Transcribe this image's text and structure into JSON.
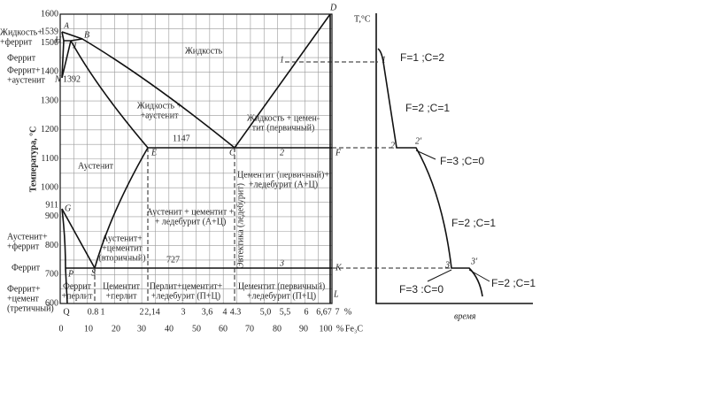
{
  "left": {
    "axis_title": "Температура, °С",
    "y_ticks": [
      "1600",
      "1500",
      "1400",
      "1300",
      "1200",
      "1100",
      "1000",
      "900",
      "800",
      "700",
      "600"
    ],
    "special_temps": [
      "1539",
      "1392",
      "1147",
      "911",
      "727"
    ],
    "x_ticks_carbon": [
      "Q",
      "0.8",
      "1",
      "2",
      "2,14",
      "3",
      "3,6",
      "4",
      "4.3",
      "5,0",
      "5,5",
      "6",
      "6,67",
      "7",
      "%"
    ],
    "x_ticks_fe3c": [
      "0",
      "10",
      "20",
      "30",
      "40",
      "50",
      "60",
      "70",
      "80",
      "90",
      "100",
      "%",
      "Fe₃C"
    ],
    "side_labels": [
      [
        "Жидкость+",
        "+феррит"
      ],
      [
        "Феррит"
      ],
      [
        "Феррит+",
        "+аустенит"
      ],
      [
        "Аустенит+",
        "+феррит"
      ],
      [
        "Феррит"
      ],
      [
        "Феррит+",
        "+цемент",
        "(третичный)"
      ]
    ],
    "regions": [
      [
        "Жидкость"
      ],
      [
        "Жидкость +",
        "+аустенит"
      ],
      [
        "Жидкость + цемен-",
        "тит (первичный)"
      ],
      [
        "Аустенит"
      ],
      [
        "Цементит (первичный)+",
        "+ледебурит (А+Ц)"
      ],
      [
        "Аустенит + цементит +",
        "+ ледебурит (А+Ц)"
      ],
      [
        "Аустенит+",
        "+цементит",
        "(вторичный)"
      ],
      [
        "Феррит",
        "+перлит"
      ],
      [
        "Цементит",
        "+перлит"
      ],
      [
        "Перлит+цементит+",
        "+ледебурит (П+Ц)"
      ],
      [
        "Цементит (первичный)",
        "+ледебурит (П+Ц)"
      ]
    ],
    "eutectic": "Эвтектика (ледебурит)",
    "points": [
      "A",
      "B",
      "H",
      "J",
      "N",
      "D",
      "E",
      "C",
      "F",
      "G",
      "P",
      "S",
      "K",
      "L",
      "1",
      "2",
      "3"
    ]
  },
  "right": {
    "axis_title": "T,°C",
    "x_title": "время",
    "points": [
      "1",
      "2",
      "2'",
      "3",
      "3'"
    ],
    "states": [
      "F=1 ;C=2",
      "F=2 ;C=1",
      "F=3 ;C=0",
      "F=2 ;C=1",
      "F=3 :C=0",
      "F=2 ;C=1"
    ]
  }
}
